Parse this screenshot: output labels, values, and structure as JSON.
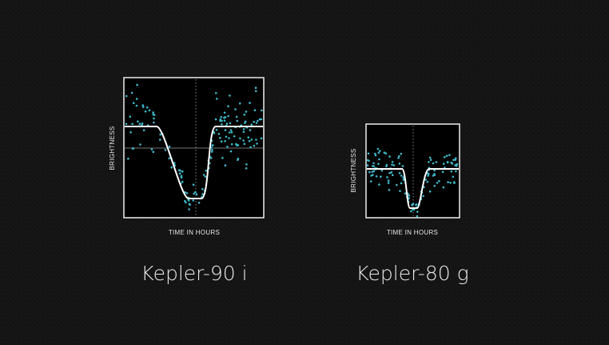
{
  "panels": [
    {
      "y_label": "BRIGHTNESS",
      "x_label": "TIME IN HOURS",
      "name": "Kepler-90 i"
    },
    {
      "y_label": "BRIGHTNESS",
      "x_label": "TIME IN HOURS",
      "name": "Kepler-80 g"
    }
  ]
}
